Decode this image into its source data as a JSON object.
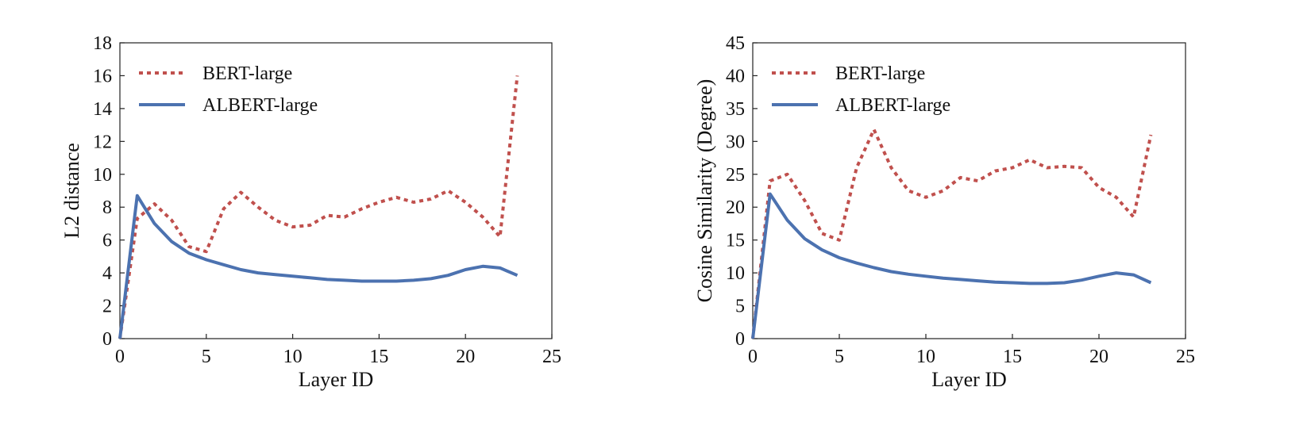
{
  "colors": {
    "bert": "#c0504d",
    "albert": "#4c72b0"
  },
  "chart_data": [
    {
      "type": "line",
      "xlabel": "Layer ID",
      "ylabel": "L2 distance",
      "xlim": [
        0,
        25
      ],
      "ylim": [
        0,
        18
      ],
      "xticks": [
        0,
        5,
        10,
        15,
        20,
        25
      ],
      "yticks": [
        0,
        2,
        4,
        6,
        8,
        10,
        12,
        14,
        16,
        18
      ],
      "grid": false,
      "legend_position": "upper-left",
      "series": [
        {
          "name": "BERT-large",
          "style": "dotted",
          "x": [
            0,
            1,
            2,
            3,
            4,
            5,
            6,
            7,
            8,
            9,
            10,
            11,
            12,
            13,
            14,
            15,
            16,
            17,
            18,
            19,
            20,
            21,
            22,
            23
          ],
          "y": [
            0,
            7.3,
            8.2,
            7.2,
            5.6,
            5.3,
            7.9,
            8.9,
            8.0,
            7.2,
            6.8,
            6.9,
            7.5,
            7.4,
            7.9,
            8.3,
            8.6,
            8.3,
            8.5,
            9.0,
            8.3,
            7.4,
            6.2,
            16.0
          ]
        },
        {
          "name": "ALBERT-large",
          "style": "solid",
          "x": [
            0,
            1,
            2,
            3,
            4,
            5,
            6,
            7,
            8,
            9,
            10,
            11,
            12,
            13,
            14,
            15,
            16,
            17,
            18,
            19,
            20,
            21,
            22,
            23
          ],
          "y": [
            0,
            8.7,
            7.0,
            5.9,
            5.2,
            4.8,
            4.5,
            4.2,
            4.0,
            3.9,
            3.8,
            3.7,
            3.6,
            3.55,
            3.5,
            3.5,
            3.5,
            3.55,
            3.65,
            3.85,
            4.2,
            4.4,
            4.3,
            3.85
          ]
        }
      ]
    },
    {
      "type": "line",
      "xlabel": "Layer ID",
      "ylabel": "Cosine Similarity (Degree)",
      "xlim": [
        0,
        25
      ],
      "ylim": [
        0,
        45
      ],
      "xticks": [
        0,
        5,
        10,
        15,
        20,
        25
      ],
      "yticks": [
        0,
        5,
        10,
        15,
        20,
        25,
        30,
        35,
        40,
        45
      ],
      "grid": false,
      "legend_position": "upper-left",
      "series": [
        {
          "name": "BERT-large",
          "style": "dotted",
          "x": [
            0,
            1,
            2,
            3,
            4,
            5,
            6,
            7,
            8,
            9,
            10,
            11,
            12,
            13,
            14,
            15,
            16,
            17,
            18,
            19,
            20,
            21,
            22,
            23
          ],
          "y": [
            0,
            24.0,
            25.0,
            21.0,
            16.0,
            15.0,
            26.0,
            31.8,
            26.0,
            22.5,
            21.5,
            22.5,
            24.5,
            24.0,
            25.5,
            26.0,
            27.2,
            26.0,
            26.2,
            26.0,
            23.0,
            21.5,
            18.5,
            31.0
          ]
        },
        {
          "name": "ALBERT-large",
          "style": "solid",
          "x": [
            0,
            1,
            2,
            3,
            4,
            5,
            6,
            7,
            8,
            9,
            10,
            11,
            12,
            13,
            14,
            15,
            16,
            17,
            18,
            19,
            20,
            21,
            22,
            23
          ],
          "y": [
            0,
            22.0,
            18.0,
            15.2,
            13.5,
            12.3,
            11.5,
            10.8,
            10.2,
            9.8,
            9.5,
            9.2,
            9.0,
            8.8,
            8.6,
            8.5,
            8.4,
            8.4,
            8.5,
            8.9,
            9.5,
            10.0,
            9.7,
            8.5
          ]
        }
      ]
    }
  ]
}
